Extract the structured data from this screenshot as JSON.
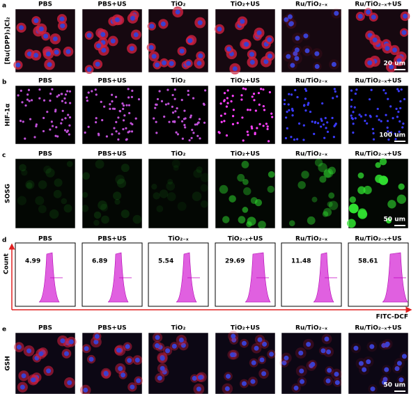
{
  "panels": [
    {
      "label": "a",
      "row_label": "[Ru(DPP)₃]Cl₂",
      "columns": [
        "PBS",
        "PBS+US",
        "TiO₂",
        "TiO₂+US",
        "Ru/TiO₂₋ₓ",
        "Ru/TiO₂₋ₓ+US"
      ],
      "scale_bar": "20 um"
    },
    {
      "label": "b",
      "row_label": "HIF-1α",
      "columns": [
        "PBS",
        "PBS+US",
        "TiO₂",
        "TiO₂+US",
        "Ru/TiO₂₋ₓ",
        "Ru/TiO₂₋ₓ+US"
      ],
      "scale_bar": "100 um"
    },
    {
      "label": "c",
      "row_label": "SOSG",
      "columns": [
        "PBS",
        "PBS+US",
        "TiO₂",
        "TiO₂+US",
        "Ru/TiO₂₋ₓ",
        "Ru/TiO₂₋ₓ+US"
      ],
      "scale_bar": "50 um"
    },
    {
      "label": "d",
      "columns": [
        "PBS",
        "PBS+US",
        "TiO₂₋ₓ",
        "TiO₂₋ₓ+US",
        "Ru/TiO₂₋ₓ",
        "Ru/TiO₂₋ₓ+US"
      ],
      "values": [
        4.99,
        6.89,
        5.54,
        29.69,
        11.48,
        58.61
      ],
      "y_axis_label": "Count",
      "x_axis_label": "FITC-DCF"
    },
    {
      "label": "e",
      "row_label": "GSH",
      "columns": [
        "PBS",
        "PBS+US",
        "TiO₂",
        "TiO₂+US",
        "Ru/TiO₂₋ₓ",
        "Ru/TiO₂₋ₓ+US"
      ],
      "scale_bar": "50 um"
    }
  ]
}
